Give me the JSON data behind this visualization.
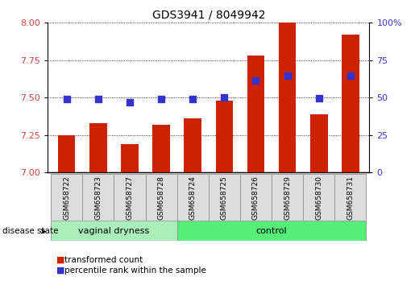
{
  "title": "GDS3941 / 8049942",
  "samples": [
    "GSM658722",
    "GSM658723",
    "GSM658727",
    "GSM658728",
    "GSM658724",
    "GSM658725",
    "GSM658726",
    "GSM658729",
    "GSM658730",
    "GSM658731"
  ],
  "red_values": [
    7.25,
    7.33,
    7.19,
    7.32,
    7.36,
    7.48,
    7.78,
    8.0,
    7.39,
    7.92
  ],
  "blue_values": [
    7.493,
    7.491,
    7.467,
    7.492,
    7.491,
    7.504,
    7.617,
    7.645,
    7.497,
    7.645
  ],
  "ylim_left": [
    7.0,
    8.0
  ],
  "ylim_right": [
    0,
    100
  ],
  "yticks_left": [
    7.0,
    7.25,
    7.5,
    7.75,
    8.0
  ],
  "yticks_right": [
    0,
    25,
    50,
    75,
    100
  ],
  "bar_color": "#CC2200",
  "dot_color": "#3333CC",
  "background_color": "#FFFFFF",
  "grid_color": "#000000",
  "groups": [
    {
      "label": "vaginal dryness",
      "start": 0,
      "end": 4,
      "color": "#AAEEBB"
    },
    {
      "label": "control",
      "start": 4,
      "end": 10,
      "color": "#55EE77"
    }
  ],
  "group_label": "disease state",
  "legend_items": [
    {
      "label": "transformed count",
      "color": "#CC2200"
    },
    {
      "label": "percentile rank within the sample",
      "color": "#3333CC"
    }
  ],
  "bar_width": 0.55,
  "dot_size": 30,
  "ybase": 7.0,
  "left_tick_color": "#CC4444",
  "right_tick_color": "#3333CC"
}
